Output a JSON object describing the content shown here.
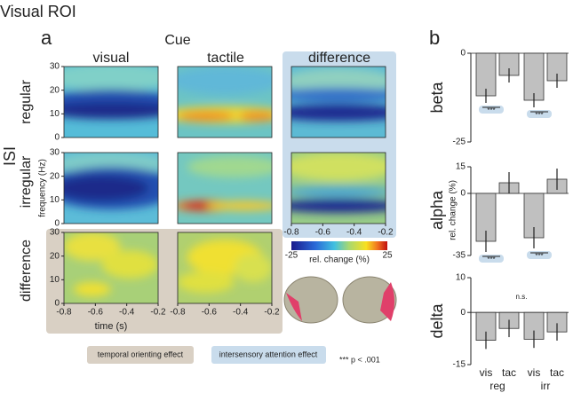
{
  "title": "Visual ROI",
  "panel_a": {
    "label": "a",
    "cue_label": "Cue",
    "columns": [
      "visual",
      "tactile",
      "difference"
    ],
    "isi_label": "ISI",
    "rows": [
      "regular",
      "irregular",
      "difference"
    ],
    "y_label": "frequency (Hz)",
    "x_label": "time (s)",
    "ylim": [
      0,
      30
    ],
    "yticks": [
      0,
      10,
      20,
      30
    ],
    "xlim": [
      -0.8,
      -0.2
    ],
    "xticks": [
      -0.8,
      -0.6,
      -0.4,
      -0.2
    ],
    "colorbar": {
      "lim": [
        -25,
        25
      ],
      "ticks": [
        -25,
        25
      ],
      "label": "rel. change (%)"
    },
    "legend": [
      "temporal orienting effect",
      "intersensory attention effect"
    ],
    "significance_note": "*** p < .001"
  },
  "panel_b": {
    "label": "b",
    "y_label": "rel. change (%)"
  },
  "chart_data": [
    {
      "type": "bar",
      "row_label": "beta",
      "categories": [
        null,
        null,
        null,
        null
      ],
      "values": [
        -12,
        -6.25,
        -13.25,
        -7.75
      ],
      "errors": [
        2,
        2,
        2,
        2
      ],
      "color": "#c0c0c0",
      "ylim": [
        -25,
        0
      ],
      "yticks": [
        0,
        -25
      ],
      "annotations": [
        "***",
        "***"
      ]
    },
    {
      "type": "bar",
      "row_label": "alpha",
      "categories": [
        null,
        null,
        null,
        null
      ],
      "values": [
        -27,
        6,
        -25,
        8
      ],
      "errors": [
        6,
        6,
        6,
        6
      ],
      "color": "#c0c0c0",
      "ylim": [
        -35,
        15
      ],
      "yticks": [
        15,
        0,
        -35
      ],
      "annotations": [
        "***",
        "***"
      ]
    },
    {
      "type": "bar",
      "row_label": "delta",
      "categories": [
        "vis",
        "tac",
        "vis",
        "tac"
      ],
      "groups": [
        "reg",
        "irr"
      ],
      "values": [
        -8,
        -4.6,
        -7.7,
        -5.6
      ],
      "errors": [
        2.5,
        2.5,
        2.5,
        2.5
      ],
      "color": "#c0c0c0",
      "ylim": [
        -15,
        10
      ],
      "yticks": [
        10,
        0,
        -15
      ],
      "annotations": [
        "n.s."
      ]
    }
  ]
}
